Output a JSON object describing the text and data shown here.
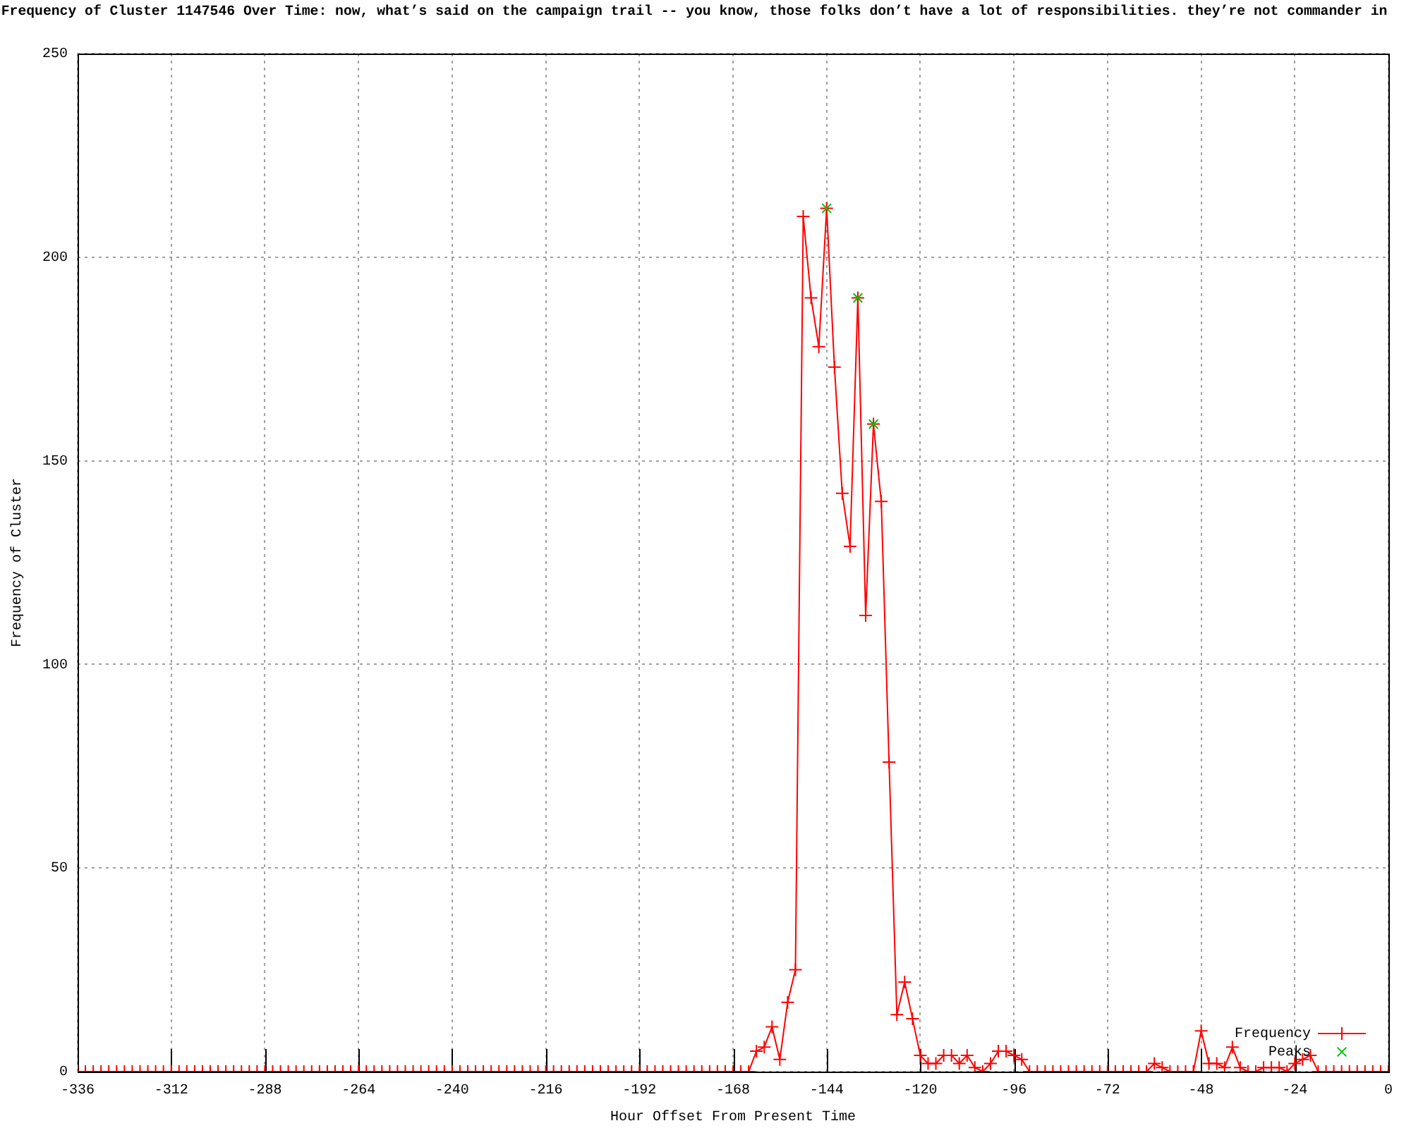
{
  "chart_data": {
    "type": "line",
    "title": "Frequency of Cluster 1147546 Over Time: now, what’s said on the campaign trail -- you know, those folks don’t have a lot of responsibilities. they’re not commander in",
    "xlabel": "Hour Offset From Present Time",
    "ylabel": "Frequency of Cluster",
    "x": [
      -336,
      -334,
      -332,
      -330,
      -328,
      -326,
      -324,
      -322,
      -320,
      -318,
      -316,
      -314,
      -312,
      -310,
      -308,
      -306,
      -304,
      -302,
      -300,
      -298,
      -296,
      -294,
      -292,
      -290,
      -288,
      -286,
      -284,
      -282,
      -280,
      -278,
      -276,
      -274,
      -272,
      -270,
      -268,
      -266,
      -264,
      -262,
      -260,
      -258,
      -256,
      -254,
      -252,
      -250,
      -248,
      -246,
      -244,
      -242,
      -240,
      -238,
      -236,
      -234,
      -232,
      -230,
      -228,
      -226,
      -224,
      -222,
      -220,
      -218,
      -216,
      -214,
      -212,
      -210,
      -208,
      -206,
      -204,
      -202,
      -200,
      -198,
      -196,
      -194,
      -192,
      -190,
      -188,
      -186,
      -184,
      -182,
      -180,
      -178,
      -176,
      -174,
      -172,
      -170,
      -168,
      -166,
      -164,
      -162,
      -160,
      -158,
      -156,
      -154,
      -152,
      -150,
      -148,
      -146,
      -144,
      -142,
      -140,
      -138,
      -136,
      -134,
      -132,
      -130,
      -128,
      -126,
      -124,
      -122,
      -120,
      -118,
      -116,
      -114,
      -112,
      -110,
      -108,
      -106,
      -104,
      -102,
      -100,
      -98,
      -96,
      -94,
      -92,
      -90,
      -88,
      -86,
      -84,
      -82,
      -80,
      -78,
      -76,
      -74,
      -72,
      -70,
      -68,
      -66,
      -64,
      -62,
      -60,
      -58,
      -56,
      -54,
      -52,
      -50,
      -48,
      -46,
      -44,
      -42,
      -40,
      -38,
      -36,
      -34,
      -32,
      -30,
      -28,
      -26,
      -24,
      -22,
      -20,
      -18,
      -16,
      -14,
      -12,
      -10,
      -8,
      -6,
      -4,
      -2,
      0
    ],
    "series": [
      {
        "name": "Frequency",
        "color": "#ff0000",
        "marker": "cross",
        "line_style": "solid",
        "values": [
          0,
          0,
          0,
          0,
          0,
          0,
          0,
          0,
          0,
          0,
          0,
          0,
          0,
          0,
          0,
          0,
          0,
          0,
          0,
          0,
          0,
          0,
          0,
          0,
          0,
          0,
          0,
          0,
          0,
          0,
          0,
          0,
          0,
          0,
          0,
          0,
          0,
          0,
          0,
          0,
          0,
          0,
          0,
          0,
          0,
          0,
          0,
          0,
          0,
          0,
          0,
          0,
          0,
          0,
          0,
          0,
          0,
          0,
          0,
          0,
          0,
          0,
          0,
          0,
          0,
          0,
          0,
          0,
          0,
          0,
          0,
          0,
          0,
          0,
          0,
          0,
          0,
          0,
          0,
          0,
          0,
          0,
          0,
          0,
          0,
          0,
          0,
          5,
          6,
          11,
          3,
          17,
          25,
          210,
          190,
          178,
          212,
          173,
          142,
          129,
          190,
          112,
          159,
          140,
          76,
          14,
          22,
          13,
          4,
          2,
          2,
          4,
          4,
          2,
          4,
          1,
          0,
          2,
          5,
          5,
          4,
          3,
          0,
          0,
          0,
          0,
          0,
          0,
          0,
          0,
          0,
          0,
          0,
          0,
          0,
          0,
          0,
          0,
          2,
          1,
          0,
          0,
          0,
          0,
          10,
          2,
          2,
          1,
          6,
          1,
          0,
          0,
          1,
          1,
          1,
          0,
          2,
          3,
          4,
          0,
          0,
          0,
          0,
          0,
          0,
          0,
          0,
          0,
          0
        ]
      },
      {
        "name": "Peaks",
        "type": "scatter",
        "color": "#00c000",
        "marker": "x",
        "x": [
          -144,
          -136,
          -132
        ],
        "values": [
          212,
          190,
          159
        ]
      }
    ],
    "xlim": [
      -336,
      0
    ],
    "xticks": [
      -336,
      -312,
      -288,
      -264,
      -240,
      -216,
      -192,
      -168,
      -144,
      -120,
      -96,
      -72,
      -48,
      -24,
      0
    ],
    "ylim": [
      0,
      250
    ],
    "yticks": [
      0,
      50,
      100,
      150,
      200,
      250
    ],
    "grid": true,
    "legend": "bottom right"
  }
}
